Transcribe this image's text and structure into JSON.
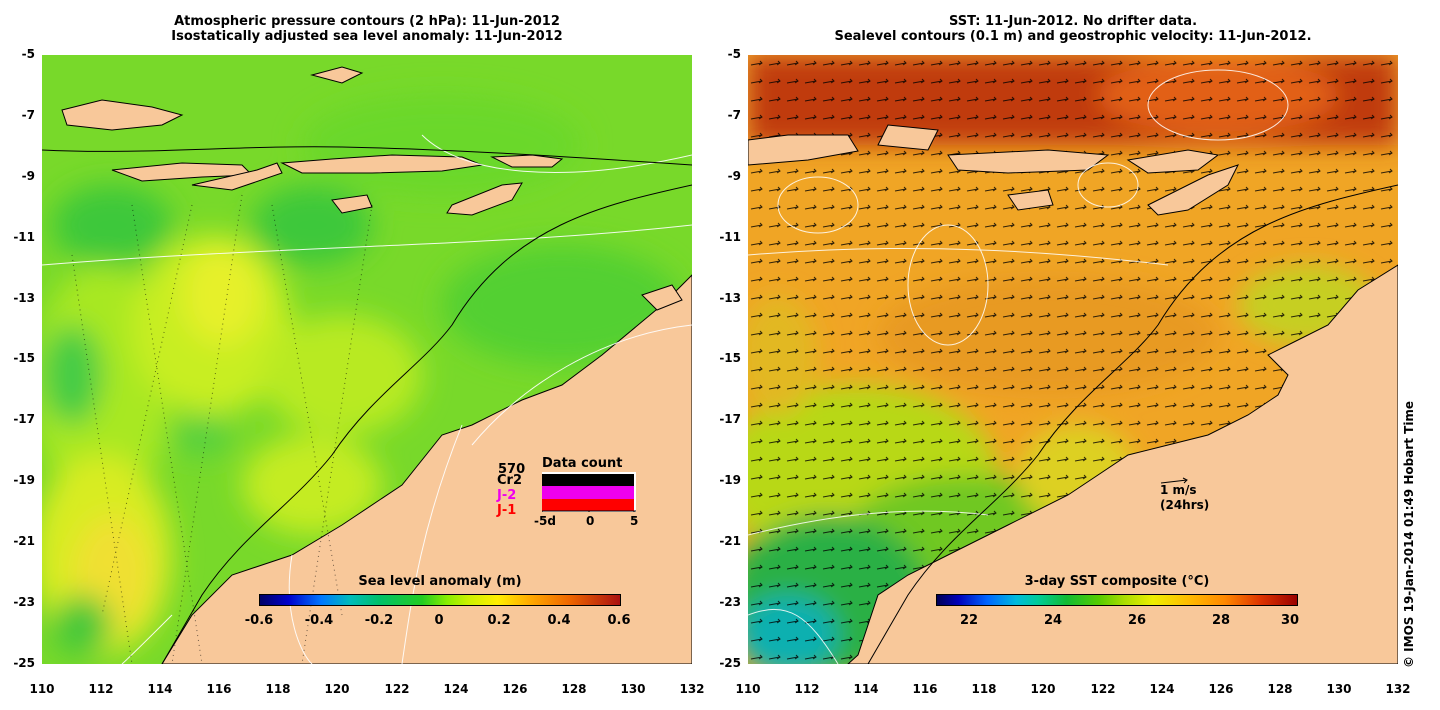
{
  "left_panel": {
    "title_line1": "Atmospheric pressure contours (2 hPa): 11-Jun-2012",
    "title_line2": "Isostatically adjusted sea level anomaly: 11-Jun-2012",
    "colorbar_title": "Sea level anomaly (m)",
    "colorbar_ticks": [
      "-0.6",
      "-0.4",
      "-0.2",
      "0",
      "0.2",
      "0.4",
      "0.6"
    ],
    "data_count": {
      "title": "Data count",
      "total": "570",
      "labels": [
        "Cr2",
        "J-2",
        "J-1"
      ],
      "label_colors": [
        "#000000",
        "#ee00ee",
        "#ff0000"
      ],
      "axis_ticks": [
        "-5d",
        "0",
        "5"
      ]
    }
  },
  "right_panel": {
    "title_line1": "SST: 11-Jun-2012. No drifter data.",
    "title_line2": "Sealevel contours (0.1 m) and geostrophic velocity: 11-Jun-2012.",
    "colorbar_title": "3-day SST composite (°C)",
    "colorbar_ticks": [
      "22",
      "24",
      "26",
      "28",
      "30"
    ],
    "velocity_scale": {
      "speed": "1 m/s",
      "duration": "(24hrs)"
    }
  },
  "axes": {
    "lat_labels": [
      "-5",
      "-7",
      "-9",
      "-11",
      "-13",
      "-15",
      "-17",
      "-19",
      "-21",
      "-23",
      "-25"
    ],
    "lon_labels": [
      "110",
      "112",
      "114",
      "116",
      "118",
      "120",
      "122",
      "124",
      "126",
      "128",
      "130",
      "132"
    ]
  },
  "credit": "© IMOS 19-Jan-2014 01:49 Hobart Time",
  "colors": {
    "land": "#f8c89a",
    "sea_anomaly_base": "#7fe02a",
    "sst_base": "#f0a020"
  }
}
